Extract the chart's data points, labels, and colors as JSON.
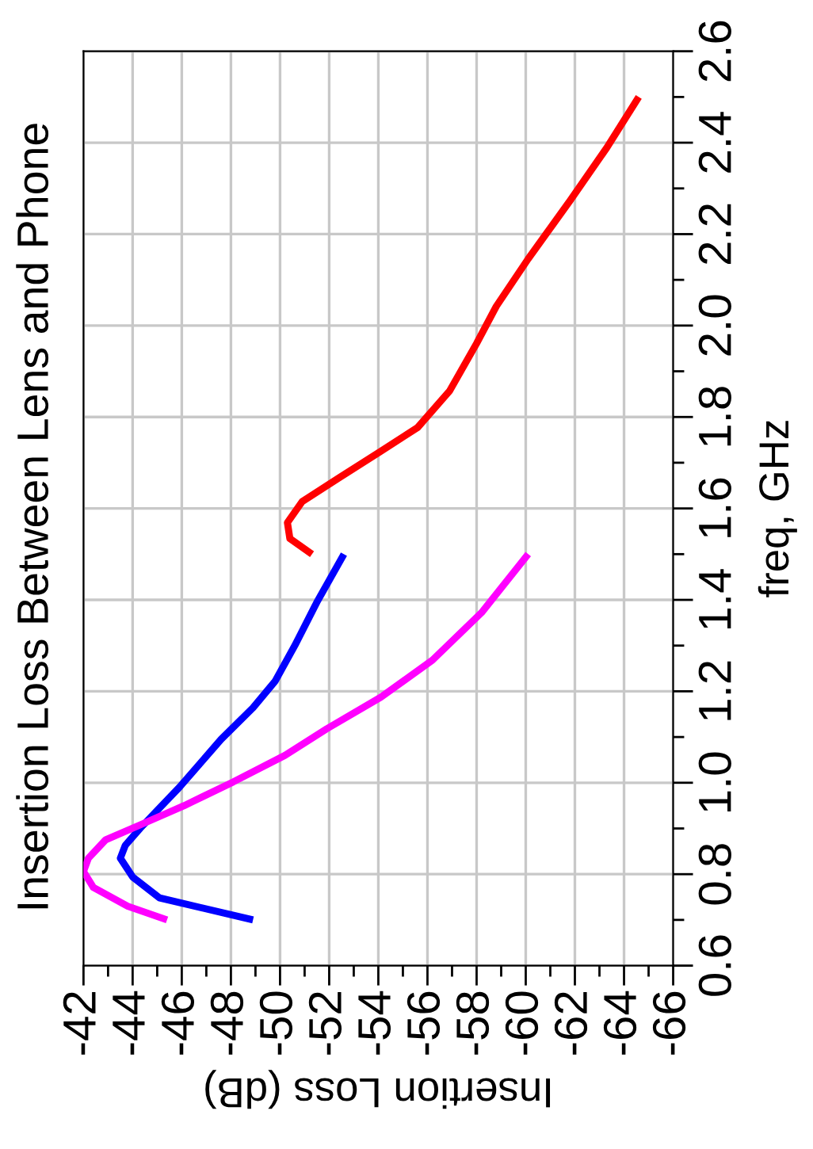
{
  "chart_data": {
    "type": "line",
    "title": "Insertion Loss Between Lens and Phone",
    "xlabel": "Insertion Loss (dB)",
    "ylabel": "freq, GHz",
    "ylim": [
      0.6,
      2.6
    ],
    "yticks": [
      0.6,
      0.8,
      {
        "value": 1.0,
        "label": "1.0"
      },
      1.2,
      1.4,
      1.6,
      1.8,
      {
        "value": 2.0,
        "label": "2.0"
      },
      2.2,
      2.4,
      2.6
    ],
    "xlim": [
      -42,
      -66
    ],
    "xticks": [
      -42,
      -44,
      -46,
      -48,
      -50,
      -52,
      -54,
      -56,
      -58,
      -60,
      -62,
      -64,
      -66
    ],
    "grid": true,
    "series": [
      {
        "color": "#0000ff",
        "values": [
          0.7,
          0.748,
          0.794,
          0.835,
          0.863,
          0.9,
          0.99,
          1.095,
          1.164,
          1.222,
          1.3,
          1.395,
          1.5
        ],
        "x": [
          -48.9,
          -45.1,
          -44.0,
          -43.5,
          -43.7,
          -44.3,
          -45.9,
          -47.6,
          -48.9,
          -49.8,
          -50.6,
          -51.5,
          -52.6
        ]
      },
      {
        "color": "#ff00ff",
        "values": [
          0.7,
          0.73,
          0.771,
          0.806,
          0.835,
          0.875,
          0.91,
          0.95,
          1.002,
          1.06,
          1.118,
          1.187,
          1.268,
          1.372,
          1.5
        ],
        "x": [
          -45.4,
          -43.8,
          -42.4,
          -42.0,
          -42.2,
          -42.9,
          -44.4,
          -46.1,
          -48.1,
          -50.2,
          -51.9,
          -54.1,
          -56.2,
          -58.2,
          -60.1
        ]
      },
      {
        "color": "#ff0000",
        "values": [
          1.5,
          1.534,
          1.569,
          1.615,
          1.667,
          1.725,
          1.777,
          1.857,
          1.961,
          2.042,
          2.146,
          2.273,
          2.389,
          2.5
        ],
        "x": [
          -51.3,
          -50.4,
          -50.3,
          -50.9,
          -52.4,
          -54.1,
          -55.6,
          -56.9,
          -58.0,
          -58.8,
          -60.1,
          -61.8,
          -63.3,
          -64.6
        ]
      }
    ]
  }
}
